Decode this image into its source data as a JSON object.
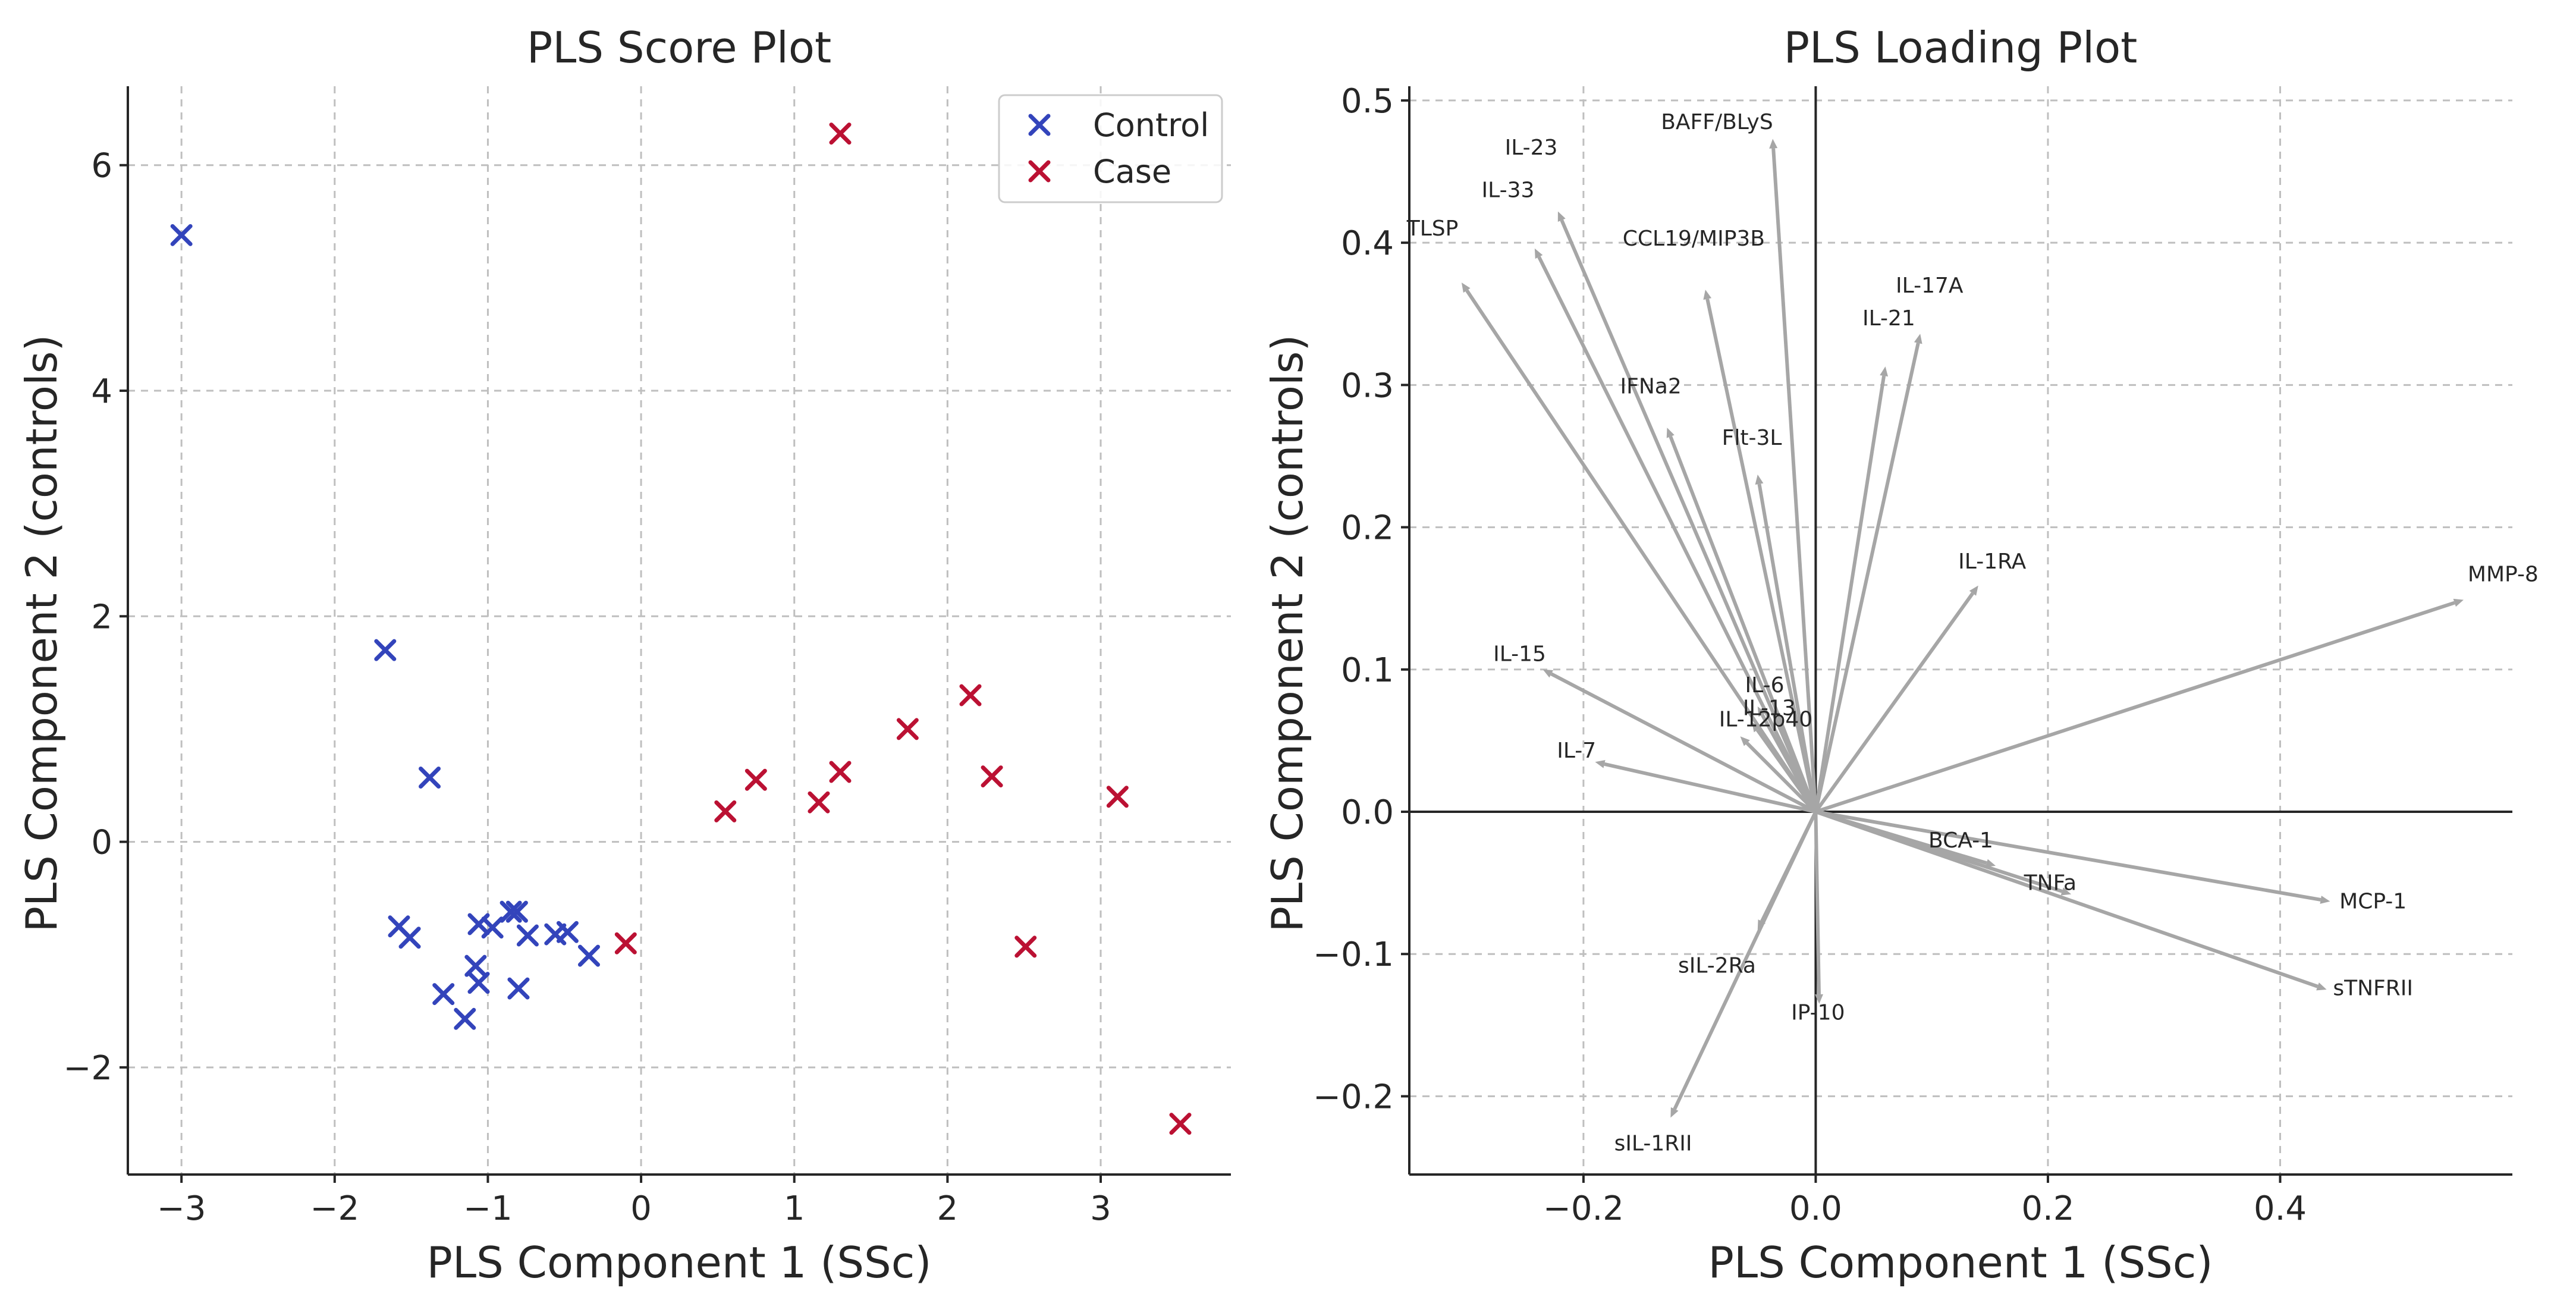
{
  "chart_data": [
    {
      "type": "scatter",
      "title": "PLS Score Plot",
      "xlabel": "PLS Component 1 (SSc)",
      "ylabel": "PLS Component 2 (controls)",
      "xlim": [
        -3.35,
        3.85
      ],
      "ylim": [
        -2.95,
        6.7
      ],
      "xticks": [
        -3,
        -2,
        -1,
        0,
        1,
        2,
        3
      ],
      "yticks": [
        -2,
        0,
        2,
        4,
        6
      ],
      "xtick_labels": [
        "−3",
        "−2",
        "−1",
        "0",
        "1",
        "2",
        "3"
      ],
      "ytick_labels": [
        "−2",
        "0",
        "2",
        "4",
        "6"
      ],
      "grid": true,
      "legend_position": "top-right",
      "marker": "x",
      "series": [
        {
          "name": "Control",
          "color": "#3344bb",
          "points": [
            [
              -3.0,
              5.38
            ],
            [
              -1.67,
              1.7
            ],
            [
              -1.38,
              0.57
            ],
            [
              -1.58,
              -0.75
            ],
            [
              -1.51,
              -0.85
            ],
            [
              -1.06,
              -0.73
            ],
            [
              -0.97,
              -0.76
            ],
            [
              -0.85,
              -0.62
            ],
            [
              -0.81,
              -0.62
            ],
            [
              -0.74,
              -0.83
            ],
            [
              -0.56,
              -0.82
            ],
            [
              -0.48,
              -0.8
            ],
            [
              -0.34,
              -1.01
            ],
            [
              -1.29,
              -1.35
            ],
            [
              -1.08,
              -1.1
            ],
            [
              -1.06,
              -1.25
            ],
            [
              -0.8,
              -1.3
            ],
            [
              -1.15,
              -1.57
            ]
          ]
        },
        {
          "name": "Case",
          "color": "#bb1133",
          "points": [
            [
              1.3,
              6.28
            ],
            [
              -0.1,
              -0.9
            ],
            [
              0.55,
              0.27
            ],
            [
              0.75,
              0.55
            ],
            [
              1.16,
              0.35
            ],
            [
              1.3,
              0.62
            ],
            [
              1.74,
              1.0
            ],
            [
              2.15,
              1.3
            ],
            [
              2.29,
              0.58
            ],
            [
              2.51,
              -0.93
            ],
            [
              3.11,
              0.4
            ],
            [
              3.52,
              -2.5
            ]
          ]
        }
      ]
    },
    {
      "type": "scatter",
      "subtype": "loading-vectors",
      "title": "PLS Loading Plot",
      "xlabel": "PLS Component 1 (SSc)",
      "ylabel": "PLS Component 2 (controls)",
      "xlim": [
        -0.35,
        0.6
      ],
      "ylim": [
        -0.255,
        0.51
      ],
      "xticks": [
        -0.2,
        0.0,
        0.2,
        0.4
      ],
      "yticks": [
        -0.2,
        -0.1,
        0.0,
        0.1,
        0.2,
        0.3,
        0.4,
        0.5
      ],
      "xtick_labels": [
        "−0.2",
        "0.0",
        "0.2",
        "0.4"
      ],
      "ytick_labels": [
        "−0.2",
        "−0.1",
        "0.0",
        "0.1",
        "0.2",
        "0.3",
        "0.4",
        "0.5"
      ],
      "grid": true,
      "arrow_color": "#a6a6a6",
      "vectors": [
        {
          "name": "BAFF/BLyS",
          "x": -0.037,
          "y": 0.473,
          "lx": -0.085,
          "ly": 0.48
        },
        {
          "name": "IL-23",
          "x": -0.222,
          "y": 0.422,
          "lx": -0.245,
          "ly": 0.462
        },
        {
          "name": "IL-33",
          "x": -0.242,
          "y": 0.396,
          "lx": -0.265,
          "ly": 0.432
        },
        {
          "name": "TLSP",
          "x": -0.305,
          "y": 0.372,
          "lx": -0.33,
          "ly": 0.405
        },
        {
          "name": "CCL19/MIP3B",
          "x": -0.095,
          "y": 0.367,
          "lx": -0.105,
          "ly": 0.398
        },
        {
          "name": "IL-17A",
          "x": 0.09,
          "y": 0.336,
          "lx": 0.098,
          "ly": 0.365
        },
        {
          "name": "IL-21",
          "x": 0.06,
          "y": 0.313,
          "lx": 0.063,
          "ly": 0.342
        },
        {
          "name": "IFNa2",
          "x": -0.128,
          "y": 0.27,
          "lx": -0.142,
          "ly": 0.294
        },
        {
          "name": "Flt-3L",
          "x": -0.05,
          "y": 0.237,
          "lx": -0.055,
          "ly": 0.258
        },
        {
          "name": "IL-1RA",
          "x": 0.14,
          "y": 0.159,
          "lx": 0.152,
          "ly": 0.171
        },
        {
          "name": "MMP-8",
          "x": 0.558,
          "y": 0.149,
          "lx": 0.592,
          "ly": 0.162
        },
        {
          "name": "IL-15",
          "x": -0.235,
          "y": 0.1,
          "lx": -0.255,
          "ly": 0.106
        },
        {
          "name": "IL-6",
          "x": -0.05,
          "y": 0.074,
          "lx": -0.044,
          "ly": 0.084
        },
        {
          "name": "IL-13",
          "x": -0.055,
          "y": 0.063,
          "lx": -0.04,
          "ly": 0.068
        },
        {
          "name": "IL-12p40",
          "x": -0.065,
          "y": 0.053,
          "lx": -0.043,
          "ly": 0.06
        },
        {
          "name": "IL-7",
          "x": -0.19,
          "y": 0.035,
          "lx": -0.206,
          "ly": 0.038
        },
        {
          "name": "BCA-1",
          "x": 0.155,
          "y": -0.038,
          "lx": 0.125,
          "ly": -0.025
        },
        {
          "name": "TNFa",
          "x": 0.22,
          "y": -0.058,
          "lx": 0.202,
          "ly": -0.055
        },
        {
          "name": "MCP-1",
          "x": 0.443,
          "y": -0.063,
          "lx": 0.48,
          "ly": -0.068
        },
        {
          "name": "sTNFRII",
          "x": 0.44,
          "y": -0.125,
          "lx": 0.48,
          "ly": -0.129
        },
        {
          "name": "sIL-2Ra",
          "x": -0.05,
          "y": -0.083,
          "lx": -0.085,
          "ly": -0.113
        },
        {
          "name": "IP-10",
          "x": 0.003,
          "y": -0.135,
          "lx": 0.002,
          "ly": -0.146
        },
        {
          "name": "sIL-1RII",
          "x": -0.125,
          "y": -0.215,
          "lx": -0.14,
          "ly": -0.238
        }
      ]
    }
  ]
}
